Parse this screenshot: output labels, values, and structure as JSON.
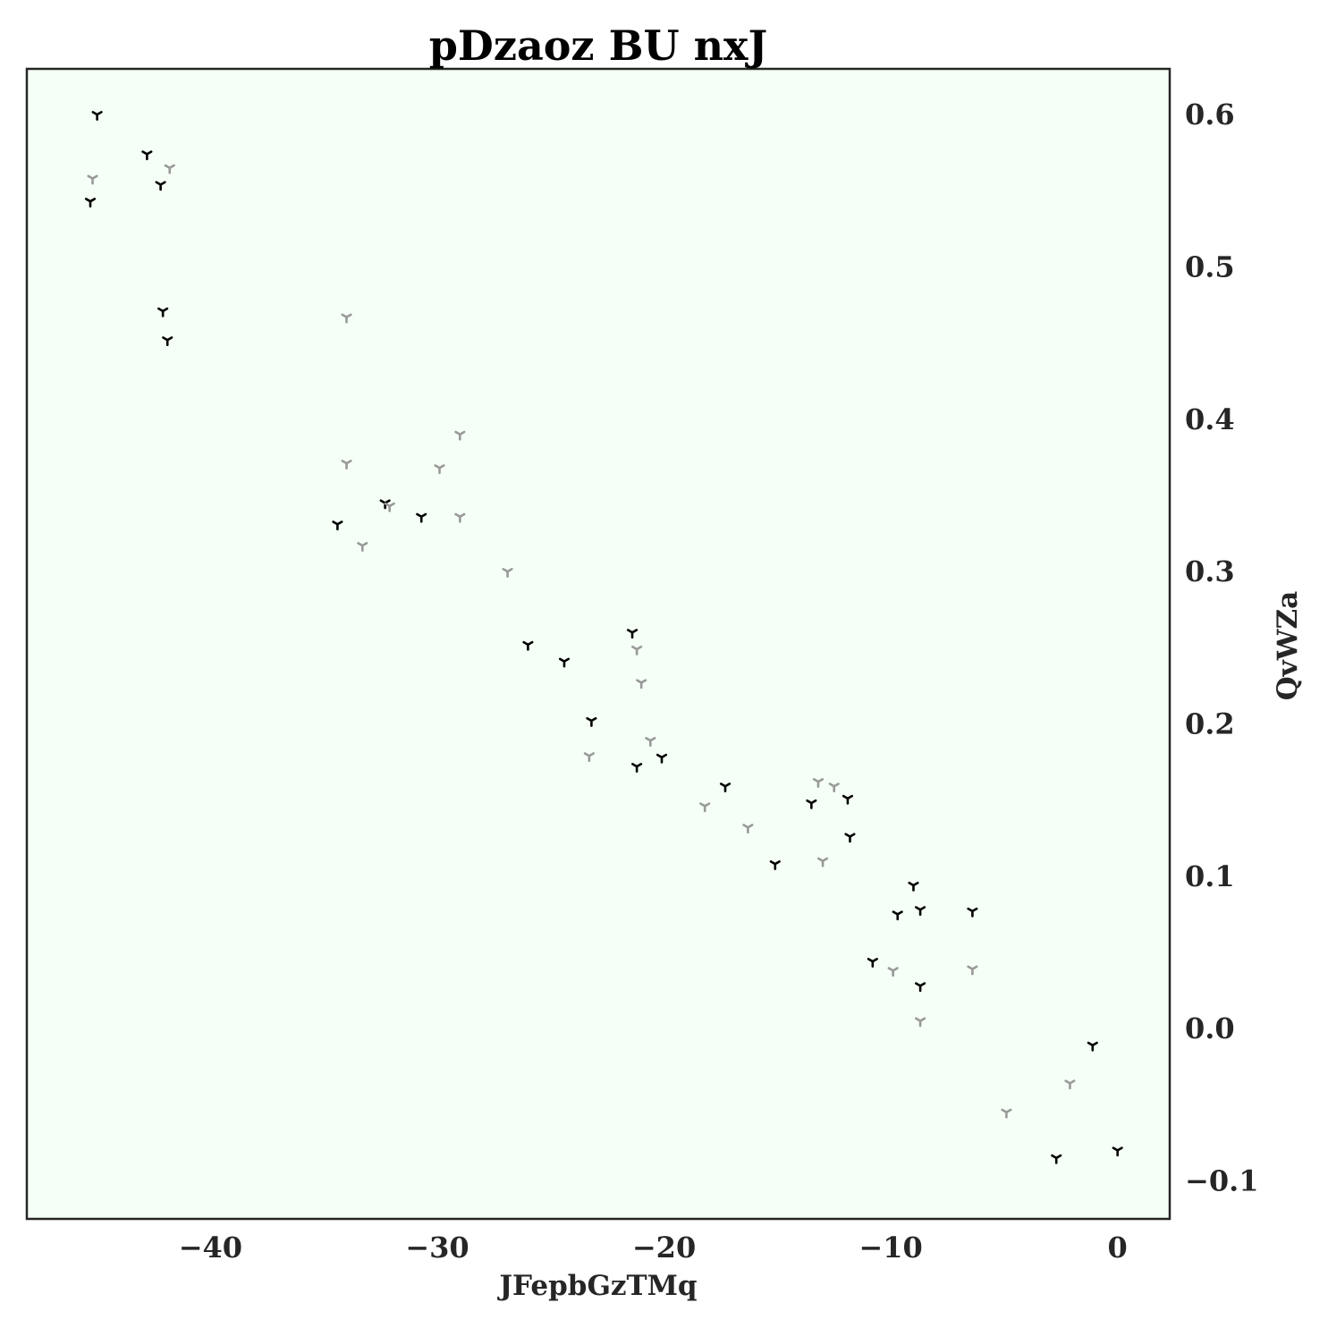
{
  "chart_data": {
    "type": "scatter",
    "title": "pDzaoz BU nxJ",
    "xlabel": "JFepbGzTMq",
    "ylabel": "QvWZa",
    "xlim": [
      -48.1,
      2.3
    ],
    "ylim": [
      -0.125,
      0.63
    ],
    "xticks": [
      -40,
      -30,
      -20,
      -10,
      0
    ],
    "xtick_labels": [
      "−40",
      "−30",
      "−20",
      "−10",
      "0"
    ],
    "yticks": [
      -0.1,
      0.0,
      0.1,
      0.2,
      0.3,
      0.4,
      0.5,
      0.6
    ],
    "ytick_labels": [
      "−0.1",
      "0.0",
      "0.1",
      "0.2",
      "0.3",
      "0.4",
      "0.5",
      "0.6"
    ],
    "y_axis_side": "right",
    "grid": false,
    "legend": "none",
    "marker": "tri_down",
    "plot_background": "#f5fff5",
    "series": [
      {
        "color": "#000000",
        "points": [
          [
            -45.0,
            0.6
          ],
          [
            -42.8,
            0.574
          ],
          [
            -42.2,
            0.554
          ],
          [
            -45.3,
            0.543
          ],
          [
            -42.1,
            0.471
          ],
          [
            -41.9,
            0.452
          ],
          [
            -32.3,
            0.345
          ],
          [
            -30.7,
            0.336
          ],
          [
            -34.4,
            0.331
          ],
          [
            -26.0,
            0.252
          ],
          [
            -24.4,
            0.241
          ],
          [
            -21.4,
            0.26
          ],
          [
            -23.2,
            0.202
          ],
          [
            -20.1,
            0.178
          ],
          [
            -21.2,
            0.172
          ],
          [
            -17.3,
            0.159
          ],
          [
            -13.5,
            0.148
          ],
          [
            -11.9,
            0.151
          ],
          [
            -11.8,
            0.126
          ],
          [
            -15.1,
            0.108
          ],
          [
            -9.0,
            0.094
          ],
          [
            -9.7,
            0.075
          ],
          [
            -8.7,
            0.078
          ],
          [
            -6.4,
            0.077
          ],
          [
            -10.8,
            0.044
          ],
          [
            -8.7,
            0.028
          ],
          [
            -1.1,
            -0.011
          ],
          [
            -2.7,
            -0.085
          ],
          [
            0.0,
            -0.08
          ]
        ]
      },
      {
        "color": "#999999",
        "points": [
          [
            -45.2,
            0.558
          ],
          [
            -41.8,
            0.565
          ],
          [
            -34.0,
            0.467
          ],
          [
            -34.0,
            0.371
          ],
          [
            -29.0,
            0.39
          ],
          [
            -29.9,
            0.368
          ],
          [
            -32.1,
            0.343
          ],
          [
            -29.0,
            0.336
          ],
          [
            -33.3,
            0.317
          ],
          [
            -26.9,
            0.3
          ],
          [
            -21.2,
            0.249
          ],
          [
            -21.0,
            0.227
          ],
          [
            -20.6,
            0.189
          ],
          [
            -23.3,
            0.179
          ],
          [
            -18.2,
            0.146
          ],
          [
            -16.3,
            0.132
          ],
          [
            -13.2,
            0.162
          ],
          [
            -12.5,
            0.159
          ],
          [
            -13.0,
            0.11
          ],
          [
            -9.9,
            0.038
          ],
          [
            -6.4,
            0.039
          ],
          [
            -8.7,
            0.005
          ],
          [
            -2.1,
            -0.036
          ],
          [
            -4.9,
            -0.055
          ]
        ]
      }
    ]
  }
}
